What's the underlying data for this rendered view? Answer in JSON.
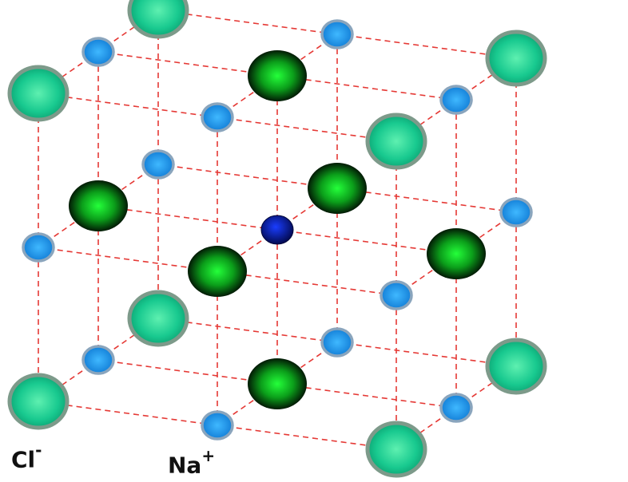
{
  "labels": {
    "chloride": {
      "symbol": "Cl",
      "charge": "-"
    },
    "sodium": {
      "symbol": "Na",
      "charge": "+"
    }
  },
  "colors": {
    "bond": "#e53935",
    "chloride_face": "#00e676",
    "chloride_ring": "#7d9a8a",
    "chloride_center": "#00c853",
    "sodium": "#1e88e5",
    "sodium_ring": "#8aa5bd",
    "center_sodium": "#0d1a9e"
  }
}
